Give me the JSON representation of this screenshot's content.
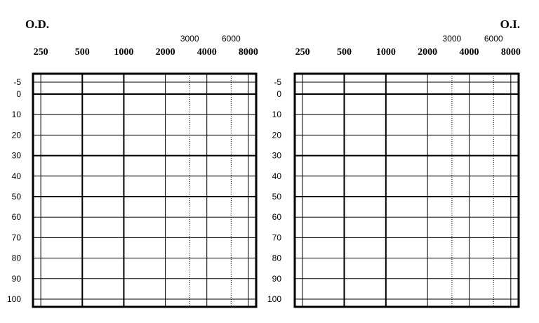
{
  "chart_data": [
    {
      "type": "audiogram",
      "title": "O.D.",
      "title_align": "left",
      "x_scale": "log",
      "x_ticks_major": [
        250,
        500,
        1000,
        2000,
        4000,
        8000
      ],
      "x_ticks_minor": [
        3000,
        6000
      ],
      "y_ticks": [
        -5,
        0,
        10,
        20,
        30,
        40,
        50,
        60,
        70,
        80,
        90,
        100
      ],
      "ylim": [
        -10,
        105
      ],
      "y_inverted": true,
      "series": [],
      "grid": true
    },
    {
      "type": "audiogram",
      "title": "O.I.",
      "title_align": "right",
      "x_scale": "log",
      "x_ticks_major": [
        250,
        500,
        1000,
        2000,
        4000,
        8000
      ],
      "x_ticks_minor": [
        3000,
        6000
      ],
      "y_ticks": [
        -5,
        0,
        10,
        20,
        30,
        40,
        50,
        60,
        70,
        80,
        90,
        100
      ],
      "ylim": [
        -10,
        105
      ],
      "y_inverted": true,
      "series": [],
      "grid": true
    }
  ]
}
